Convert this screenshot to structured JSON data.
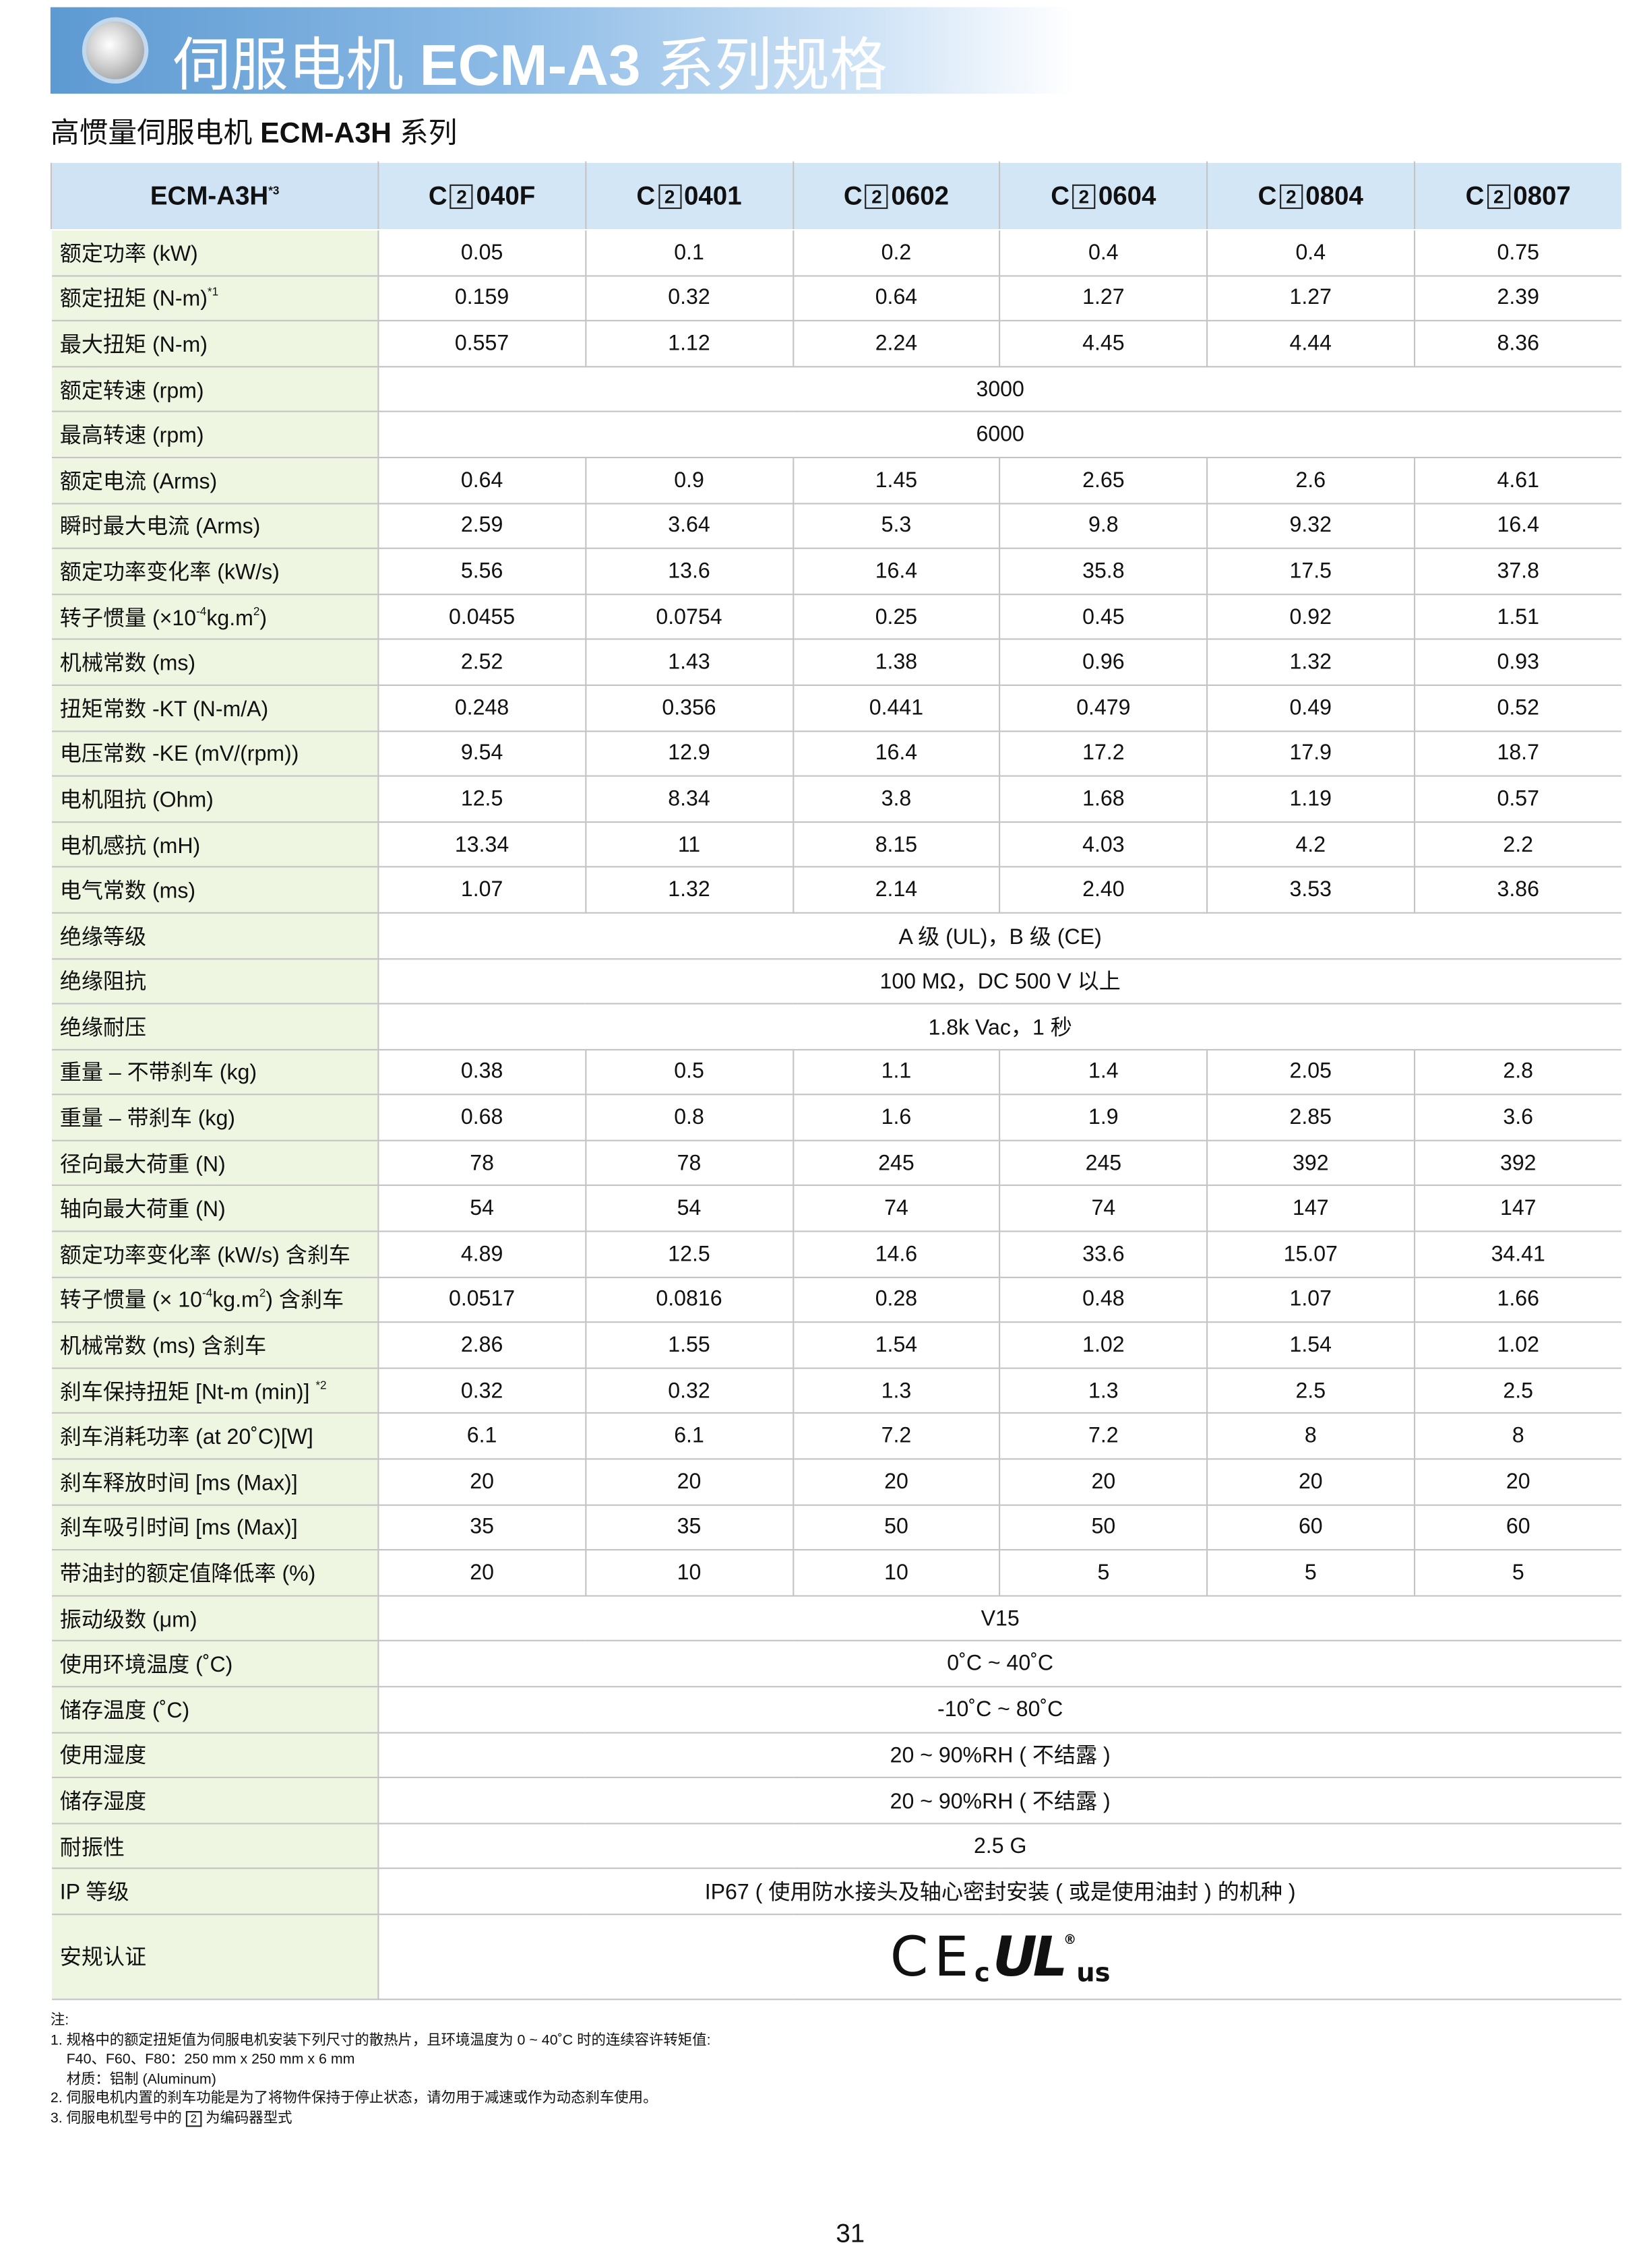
{
  "header": {
    "title": [
      "伺服电机 ",
      "ECM-A3",
      " 系列规格"
    ],
    "subtitle": [
      "高惯量伺服电机 ",
      "ECM-A3H",
      " 系列"
    ]
  },
  "table": {
    "corner": [
      "ECM-A3H",
      "*3"
    ],
    "columns": [
      {
        "prefix": "C",
        "box": "2",
        "model": "040F"
      },
      {
        "prefix": "C",
        "box": "2",
        "model": "0401"
      },
      {
        "prefix": "C",
        "box": "2",
        "model": "0602"
      },
      {
        "prefix": "C",
        "box": "2",
        "model": "0604"
      },
      {
        "prefix": "C",
        "box": "2",
        "model": "0804"
      },
      {
        "prefix": "C",
        "box": "2",
        "model": "0807"
      }
    ],
    "rows": [
      {
        "label": [
          "额定功率 (kW)"
        ],
        "values": [
          "0.05",
          "0.1",
          "0.2",
          "0.4",
          "0.4",
          "0.75"
        ]
      },
      {
        "label": [
          "额定扭矩 (N-m)",
          "*1"
        ],
        "values": [
          "0.159",
          "0.32",
          "0.64",
          "1.27",
          "1.27",
          "2.39"
        ]
      },
      {
        "label": [
          "最大扭矩 (N-m)"
        ],
        "values": [
          "0.557",
          "1.12",
          "2.24",
          "4.45",
          "4.44",
          "8.36"
        ]
      },
      {
        "label": [
          "额定转速 (rpm)"
        ],
        "all": "3000"
      },
      {
        "label": [
          "最高转速 (rpm)"
        ],
        "all": "6000"
      },
      {
        "label": [
          "额定电流 (Arms)"
        ],
        "values": [
          "0.64",
          "0.9",
          "1.45",
          "2.65",
          "2.6",
          "4.61"
        ]
      },
      {
        "label": [
          "瞬时最大电流 (Arms)"
        ],
        "values": [
          "2.59",
          "3.64",
          "5.3",
          "9.8",
          "9.32",
          "16.4"
        ]
      },
      {
        "label": [
          "额定功率变化率 (kW/s)"
        ],
        "values": [
          "5.56",
          "13.6",
          "16.4",
          "35.8",
          "17.5",
          "37.8"
        ]
      },
      {
        "label": [
          "转子惯量 (×10",
          "-4",
          "kg.m",
          "2",
          ")"
        ],
        "values": [
          "0.0455",
          "0.0754",
          "0.25",
          "0.45",
          "0.92",
          "1.51"
        ]
      },
      {
        "label": [
          "机械常数 (ms)"
        ],
        "values": [
          "2.52",
          "1.43",
          "1.38",
          "0.96",
          "1.32",
          "0.93"
        ]
      },
      {
        "label": [
          "扭矩常数 -KT (N-m/A)"
        ],
        "values": [
          "0.248",
          "0.356",
          "0.441",
          "0.479",
          "0.49",
          "0.52"
        ]
      },
      {
        "label": [
          "电压常数 -KE (mV/(rpm))"
        ],
        "values": [
          "9.54",
          "12.9",
          "16.4",
          "17.2",
          "17.9",
          "18.7"
        ]
      },
      {
        "label": [
          "电机阻抗 (Ohm)"
        ],
        "values": [
          "12.5",
          "8.34",
          "3.8",
          "1.68",
          "1.19",
          "0.57"
        ]
      },
      {
        "label": [
          "电机感抗 (mH)"
        ],
        "values": [
          "13.34",
          "11",
          "8.15",
          "4.03",
          "4.2",
          "2.2"
        ]
      },
      {
        "label": [
          "电气常数 (ms)"
        ],
        "values": [
          "1.07",
          "1.32",
          "2.14",
          "2.40",
          "3.53",
          "3.86"
        ]
      },
      {
        "label": [
          "绝缘等级"
        ],
        "all": "A 级 (UL)，B 级 (CE)"
      },
      {
        "label": [
          "绝缘阻抗"
        ],
        "all": "100 MΩ，DC 500 V 以上"
      },
      {
        "label": [
          "绝缘耐压"
        ],
        "all": "1.8k Vac，1 秒"
      },
      {
        "label": [
          "重量 – 不带刹车 (kg)"
        ],
        "values": [
          "0.38",
          "0.5",
          "1.1",
          "1.4",
          "2.05",
          "2.8"
        ]
      },
      {
        "label": [
          "重量 – 带刹车 (kg)"
        ],
        "values": [
          "0.68",
          "0.8",
          "1.6",
          "1.9",
          "2.85",
          "3.6"
        ]
      },
      {
        "label": [
          "径向最大荷重 (N)"
        ],
        "values": [
          "78",
          "78",
          "245",
          "245",
          "392",
          "392"
        ]
      },
      {
        "label": [
          "轴向最大荷重 (N)"
        ],
        "values": [
          "54",
          "54",
          "74",
          "74",
          "147",
          "147"
        ]
      },
      {
        "label": [
          "额定功率变化率 (kW/s) 含刹车"
        ],
        "values": [
          "4.89",
          "12.5",
          "14.6",
          "33.6",
          "15.07",
          "34.41"
        ]
      },
      {
        "label": [
          "转子惯量 (× 10",
          "-4",
          "kg.m",
          "2",
          ") 含刹车"
        ],
        "values": [
          "0.0517",
          "0.0816",
          "0.28",
          "0.48",
          "1.07",
          "1.66"
        ]
      },
      {
        "label": [
          "机械常数 (ms) 含刹车"
        ],
        "values": [
          "2.86",
          "1.55",
          "1.54",
          "1.02",
          "1.54",
          "1.02"
        ]
      },
      {
        "label": [
          "刹车保持扭矩 [Nt-m (min)] ",
          "*2"
        ],
        "values": [
          "0.32",
          "0.32",
          "1.3",
          "1.3",
          "2.5",
          "2.5"
        ]
      },
      {
        "label": [
          "刹车消耗功率 (at 20˚C)[W]"
        ],
        "values": [
          "6.1",
          "6.1",
          "7.2",
          "7.2",
          "8",
          "8"
        ]
      },
      {
        "label": [
          "刹车释放时间 [ms (Max)]"
        ],
        "values": [
          "20",
          "20",
          "20",
          "20",
          "20",
          "20"
        ]
      },
      {
        "label": [
          "刹车吸引时间 [ms (Max)]"
        ],
        "values": [
          "35",
          "35",
          "50",
          "50",
          "60",
          "60"
        ]
      },
      {
        "label": [
          "带油封的额定值降低率 (%)"
        ],
        "values": [
          "20",
          "10",
          "10",
          "5",
          "5",
          "5"
        ]
      },
      {
        "label": [
          "振动级数 (μm)"
        ],
        "all": "V15"
      },
      {
        "label": [
          "使用环境温度 (˚C)"
        ],
        "all": "0˚C ~ 40˚C"
      },
      {
        "label": [
          "储存温度 (˚C)"
        ],
        "all": "-10˚C ~ 80˚C"
      },
      {
        "label": [
          "使用湿度"
        ],
        "all": "20 ~ 90%RH ( 不结露 )"
      },
      {
        "label": [
          "储存湿度"
        ],
        "all": "20 ~ 90%RH ( 不结露 )"
      },
      {
        "label": [
          "耐振性"
        ],
        "all": "2.5 G"
      },
      {
        "label": [
          "IP 等级"
        ],
        "all": "IP67 ( 使用防水接头及轴心密封安装 ( 或是使用油封 ) 的机种 )"
      },
      {
        "label": [
          "安规认证"
        ],
        "cert": [
          "CE",
          "c",
          "UL",
          "®",
          "us"
        ]
      }
    ]
  },
  "notes": {
    "lines": [
      "注:",
      "1. 规格中的额定扭矩值为伺服电机安装下列尺寸的散热片，且环境温度为 0 ~ 40˚C 时的连续容许转矩值:",
      "    F40、F60、F80：250 mm x 250 mm x 6 mm",
      "    材质：铝制 (Aluminum)",
      "2. 伺服电机内置的刹车功能是为了将物件保持于停止状态，请勿用于减速或作为动态刹车使用。"
    ],
    "last": [
      "3. 伺服电机型号中的 ",
      "2",
      " 为编码器型式"
    ]
  },
  "page_number": "31"
}
